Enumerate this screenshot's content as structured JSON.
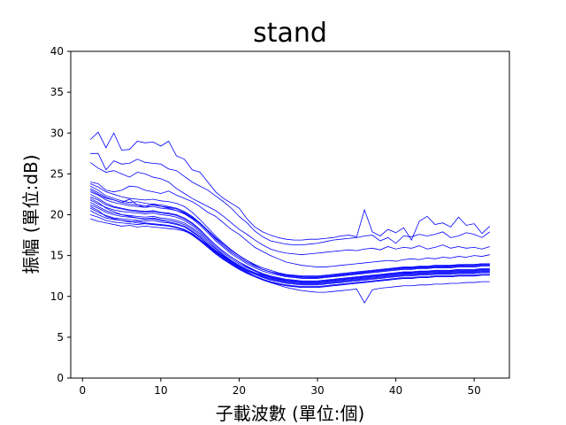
{
  "chart_data": {
    "type": "line",
    "title": "stand",
    "xlabel": "子載波數 (單位:個)",
    "ylabel": "振幅 (單位:dB)",
    "xlim": [
      -1.5,
      54.5
    ],
    "ylim": [
      0,
      40
    ],
    "xticks": [
      0,
      10,
      20,
      30,
      40,
      50
    ],
    "yticks": [
      0,
      5,
      10,
      15,
      20,
      25,
      30,
      35,
      40
    ],
    "grid": false,
    "line_color": "#0000ff",
    "x": [
      1,
      2,
      3,
      4,
      5,
      6,
      7,
      8,
      9,
      10,
      11,
      12,
      13,
      14,
      15,
      16,
      17,
      18,
      19,
      20,
      21,
      22,
      23,
      24,
      25,
      26,
      27,
      28,
      29,
      30,
      31,
      32,
      33,
      34,
      35,
      36,
      37,
      38,
      39,
      40,
      41,
      42,
      43,
      44,
      45,
      46,
      47,
      48,
      49,
      50,
      51,
      52
    ],
    "series": [
      {
        "values": [
          29.2,
          30.1,
          28.2,
          30.0,
          27.9,
          28.0,
          29.0,
          28.8,
          28.9,
          28.4,
          29.0,
          27.2,
          26.8,
          25.5,
          25.2,
          24.0,
          22.8,
          22.0,
          21.4,
          20.8,
          19.5,
          18.5,
          17.9,
          17.5,
          17.2,
          17.0,
          16.9,
          16.9,
          17.0,
          17.0,
          17.1,
          17.2,
          17.4,
          17.5,
          17.3,
          20.6,
          17.9,
          17.4,
          18.2,
          17.8,
          18.4,
          16.9,
          19.2,
          19.8,
          18.8,
          19.0,
          18.5,
          19.7,
          18.7,
          18.9,
          17.7,
          18.6
        ]
      },
      {
        "values": [
          27.5,
          27.5,
          25.5,
          26.6,
          26.2,
          26.3,
          26.8,
          26.4,
          26.3,
          26.2,
          25.6,
          25.4,
          24.7,
          24.0,
          23.5,
          23.0,
          22.3,
          21.6,
          20.8,
          19.8,
          19.0,
          18.0,
          17.3,
          16.8,
          16.6,
          16.4,
          16.3,
          16.3,
          16.4,
          16.5,
          16.7,
          16.9,
          17.0,
          17.1,
          17.2,
          17.4,
          17.5,
          16.8,
          17.2,
          16.5,
          17.4,
          17.3,
          17.6,
          17.4,
          17.6,
          17.9,
          17.2,
          17.4,
          17.8,
          17.6,
          17.2,
          17.9
        ]
      },
      {
        "values": [
          26.4,
          25.7,
          25.2,
          25.4,
          25.0,
          24.6,
          25.2,
          25.0,
          24.6,
          24.4,
          24.0,
          23.2,
          22.6,
          22.0,
          21.5,
          21.0,
          20.5,
          19.8,
          19.0,
          18.2,
          17.6,
          16.9,
          16.3,
          15.8,
          15.5,
          15.3,
          15.2,
          15.1,
          15.2,
          15.3,
          15.4,
          15.5,
          15.6,
          15.7,
          15.6,
          15.8,
          15.9,
          15.7,
          16.1,
          15.8,
          16.0,
          15.9,
          16.2,
          15.8,
          16.0,
          16.3,
          15.9,
          16.1,
          15.9,
          16.0,
          15.8,
          16.1
        ]
      },
      {
        "values": [
          24.0,
          23.8,
          23.0,
          22.8,
          23.0,
          23.5,
          23.4,
          23.0,
          22.8,
          22.6,
          22.9,
          22.4,
          22.0,
          21.6,
          21.0,
          20.3,
          19.8,
          19.0,
          18.2,
          17.6,
          16.8,
          16.0,
          15.5,
          15.0,
          14.6,
          14.2,
          14.0,
          13.8,
          13.7,
          13.6,
          13.6,
          13.7,
          13.8,
          13.9,
          14.0,
          14.1,
          14.2,
          14.3,
          14.4,
          14.3,
          14.5,
          14.6,
          14.5,
          14.7,
          14.6,
          14.8,
          14.7,
          14.9,
          14.8,
          15.0,
          14.9,
          15.1
        ]
      },
      {
        "values": [
          23.0,
          22.5,
          22.0,
          21.8,
          21.5,
          21.9,
          21.2,
          20.9,
          21.3,
          21.0,
          20.8,
          20.5,
          20.2,
          19.6,
          18.9,
          18.0,
          17.0,
          16.2,
          15.4,
          14.8,
          14.2,
          13.7,
          13.3,
          13.0,
          12.8,
          12.6,
          12.5,
          12.4,
          12.3,
          12.3,
          12.4,
          12.5,
          12.6,
          12.7,
          12.8,
          13.0,
          13.1,
          13.2,
          13.3,
          13.4,
          13.5,
          13.5,
          13.6,
          13.6,
          13.7,
          13.7,
          13.8,
          13.8,
          13.9,
          13.9,
          14.0,
          14.0
        ]
      },
      {
        "values": [
          22.0,
          21.5,
          20.8,
          20.4,
          20.0,
          19.8,
          19.6,
          19.4,
          19.5,
          19.3,
          19.1,
          18.9,
          18.6,
          18.0,
          17.3,
          16.4,
          15.6,
          14.9,
          14.3,
          13.8,
          13.3,
          12.9,
          12.6,
          12.3,
          12.1,
          12.0,
          11.9,
          11.8,
          11.8,
          11.8,
          11.9,
          12.0,
          12.1,
          12.2,
          12.3,
          12.4,
          12.5,
          12.6,
          12.7,
          12.8,
          12.9,
          12.9,
          13.0,
          13.0,
          13.1,
          13.1,
          13.1,
          13.2,
          13.2,
          13.2,
          13.3,
          13.3
        ]
      },
      {
        "values": [
          21.0,
          20.5,
          19.8,
          19.5,
          19.3,
          19.2,
          19.0,
          18.9,
          18.8,
          18.7,
          18.6,
          18.4,
          18.1,
          17.5,
          16.8,
          16.0,
          15.2,
          14.5,
          13.9,
          13.4,
          12.9,
          12.5,
          12.1,
          11.8,
          11.5,
          11.3,
          11.2,
          11.1,
          11.1,
          11.1,
          11.2,
          11.3,
          11.4,
          11.5,
          11.6,
          11.7,
          11.8,
          11.9,
          12.0,
          12.1,
          12.2,
          12.2,
          12.3,
          12.3,
          12.4,
          12.4,
          12.4,
          12.5,
          12.5,
          12.5,
          12.6,
          12.6
        ]
      },
      {
        "values": [
          19.5,
          19.2,
          19.0,
          18.8,
          18.6,
          18.7,
          18.5,
          18.6,
          18.5,
          18.4,
          18.3,
          18.2,
          18.0,
          17.6,
          17.0,
          16.3,
          15.5,
          14.8,
          14.1,
          13.5,
          13.0,
          12.5,
          12.1,
          11.7,
          11.4,
          11.1,
          10.9,
          10.7,
          10.6,
          10.5,
          10.5,
          10.6,
          10.7,
          10.8,
          10.9,
          9.2,
          10.8,
          11.0,
          11.1,
          11.2,
          11.3,
          11.3,
          11.4,
          11.4,
          11.5,
          11.5,
          11.6,
          11.6,
          11.7,
          11.7,
          11.8,
          11.8
        ]
      },
      {
        "values": [
          22.5,
          22.0,
          21.4,
          21.0,
          20.8,
          20.6,
          20.5,
          20.4,
          20.5,
          20.3,
          20.2,
          20.0,
          19.6,
          19.0,
          18.2,
          17.2,
          16.3,
          15.5,
          14.8,
          14.2,
          13.6,
          13.1,
          12.7,
          12.4,
          12.1,
          11.9,
          11.8,
          11.7,
          11.7,
          11.7,
          11.8,
          11.9,
          12.0,
          12.1,
          12.2,
          12.3,
          12.4,
          12.5,
          12.6,
          12.7,
          12.8,
          12.8,
          12.9,
          12.9,
          13.0,
          13.0,
          13.0,
          13.1,
          13.1,
          13.1,
          13.2,
          13.2
        ]
      },
      {
        "values": [
          23.5,
          23.0,
          22.3,
          22.0,
          21.7,
          21.5,
          21.6,
          21.4,
          21.3,
          21.2,
          21.0,
          20.8,
          20.4,
          19.8,
          19.0,
          18.1,
          17.2,
          16.4,
          15.6,
          15.0,
          14.4,
          13.9,
          13.5,
          13.2,
          12.9,
          12.7,
          12.6,
          12.5,
          12.5,
          12.5,
          12.6,
          12.7,
          12.8,
          12.9,
          13.0,
          13.1,
          13.2,
          13.3,
          13.4,
          13.5,
          13.6,
          13.6,
          13.7,
          13.7,
          13.8,
          13.8,
          13.8,
          13.9,
          13.9,
          13.9,
          14.0,
          14.0
        ]
      },
      {
        "values": [
          20.5,
          20.0,
          19.6,
          19.4,
          19.3,
          19.1,
          19.2,
          19.0,
          18.9,
          18.8,
          18.7,
          18.5,
          18.2,
          17.7,
          17.0,
          16.2,
          15.4,
          14.7,
          14.0,
          13.4,
          12.9,
          12.5,
          12.1,
          11.8,
          11.6,
          11.4,
          11.3,
          11.2,
          11.2,
          11.2,
          11.3,
          11.4,
          11.5,
          11.6,
          11.7,
          11.8,
          11.9,
          12.0,
          12.1,
          12.2,
          12.3,
          12.3,
          12.4,
          12.4,
          12.5,
          12.5,
          12.5,
          12.6,
          12.6,
          12.6,
          12.7,
          12.7
        ]
      },
      {
        "values": [
          21.5,
          21.0,
          20.5,
          20.2,
          20.0,
          19.9,
          19.8,
          19.7,
          19.8,
          19.6,
          19.5,
          19.3,
          19.0,
          18.4,
          17.7,
          16.8,
          15.9,
          15.1,
          14.4,
          13.8,
          13.3,
          12.9,
          12.5,
          12.2,
          12.0,
          11.8,
          11.7,
          11.6,
          11.6,
          11.6,
          11.7,
          11.8,
          11.9,
          12.0,
          12.1,
          12.2,
          12.3,
          12.4,
          12.5,
          12.6,
          12.7,
          12.7,
          12.8,
          12.8,
          12.9,
          12.9,
          12.9,
          13.0,
          13.0,
          13.0,
          13.1,
          13.1
        ]
      },
      {
        "values": [
          23.8,
          23.4,
          22.8,
          22.5,
          22.2,
          22.0,
          21.9,
          21.8,
          21.9,
          21.7,
          21.6,
          21.4,
          21.0,
          20.3,
          19.4,
          18.4,
          17.4,
          16.5,
          15.7,
          15.0,
          14.4,
          13.8,
          13.3,
          13.0,
          12.7,
          12.5,
          12.4,
          12.3,
          12.3,
          12.3,
          12.4,
          12.5,
          12.6,
          12.7,
          12.8,
          12.9,
          13.0,
          13.1,
          13.2,
          13.3,
          13.4,
          13.4,
          13.5,
          13.5,
          13.6,
          13.6,
          13.6,
          13.7,
          13.7,
          13.7,
          13.8,
          13.8
        ]
      },
      {
        "values": [
          22.2,
          21.8,
          21.2,
          20.9,
          20.7,
          20.5,
          20.4,
          20.3,
          20.4,
          20.2,
          20.1,
          19.9,
          19.5,
          18.9,
          18.1,
          17.2,
          16.3,
          15.5,
          14.8,
          14.2,
          13.7,
          13.2,
          12.8,
          12.5,
          12.3,
          12.1,
          12.0,
          11.9,
          11.9,
          11.9,
          12.0,
          12.1,
          12.2,
          12.3,
          12.4,
          12.5,
          12.6,
          12.7,
          12.8,
          12.9,
          13.0,
          13.0,
          13.1,
          13.1,
          13.2,
          13.2,
          13.2,
          13.3,
          13.3,
          13.3,
          13.4,
          13.4
        ]
      },
      {
        "values": [
          20.0,
          19.7,
          19.3,
          19.1,
          19.0,
          18.9,
          18.8,
          18.9,
          18.8,
          18.7,
          18.6,
          18.4,
          18.1,
          17.6,
          16.9,
          16.1,
          15.3,
          14.6,
          13.9,
          13.3,
          12.8,
          12.4,
          12.0,
          11.7,
          11.5,
          11.3,
          11.2,
          11.1,
          11.1,
          11.1,
          11.2,
          11.3,
          11.4,
          11.5,
          11.6,
          11.7,
          11.8,
          11.9,
          12.0,
          12.1,
          12.2,
          12.2,
          12.3,
          12.3,
          12.4,
          12.4,
          12.4,
          12.5,
          12.5,
          12.5,
          12.6,
          12.6
        ]
      },
      {
        "values": [
          21.8,
          21.3,
          20.9,
          20.6,
          20.4,
          20.3,
          20.2,
          20.1,
          20.2,
          20.0,
          19.9,
          19.7,
          19.3,
          18.7,
          17.9,
          17.0,
          16.1,
          15.3,
          14.6,
          14.0,
          13.5,
          13.1,
          12.7,
          12.4,
          12.2,
          12.0,
          11.9,
          11.8,
          11.8,
          11.8,
          11.9,
          12.0,
          12.1,
          12.2,
          12.3,
          12.4,
          12.5,
          12.6,
          12.7,
          12.8,
          12.9,
          12.9,
          13.0,
          13.0,
          13.1,
          13.1,
          13.1,
          13.2,
          13.2,
          13.2,
          13.3,
          13.3
        ]
      },
      {
        "values": [
          22.8,
          22.4,
          21.8,
          21.5,
          21.3,
          21.1,
          21.0,
          20.9,
          21.0,
          20.8,
          20.7,
          20.5,
          20.1,
          19.5,
          18.7,
          17.8,
          16.8,
          16.0,
          15.2,
          14.6,
          14.0,
          13.5,
          13.1,
          12.8,
          12.6,
          12.4,
          12.3,
          12.2,
          12.2,
          12.2,
          12.3,
          12.4,
          12.5,
          12.6,
          12.7,
          12.8,
          12.9,
          13.0,
          13.1,
          13.2,
          13.3,
          13.3,
          13.4,
          13.4,
          13.5,
          13.5,
          13.5,
          13.6,
          13.6,
          13.6,
          13.7,
          13.7
        ]
      },
      {
        "values": [
          20.8,
          20.3,
          19.9,
          19.6,
          19.5,
          19.4,
          19.3,
          19.2,
          19.3,
          19.1,
          19.0,
          18.8,
          18.5,
          17.9,
          17.2,
          16.4,
          15.6,
          14.9,
          14.2,
          13.6,
          13.1,
          12.7,
          12.3,
          12.0,
          11.8,
          11.6,
          11.5,
          11.4,
          11.4,
          11.4,
          11.5,
          11.6,
          11.7,
          11.8,
          11.9,
          12.0,
          12.1,
          12.2,
          12.3,
          12.4,
          12.5,
          12.5,
          12.6,
          12.6,
          12.7,
          12.7,
          12.7,
          12.8,
          12.8,
          12.8,
          12.9,
          12.9
        ]
      },
      {
        "values": [
          21.2,
          20.8,
          20.3,
          20.0,
          19.8,
          19.7,
          19.6,
          19.5,
          19.6,
          19.4,
          19.3,
          19.1,
          18.8,
          18.2,
          17.5,
          16.6,
          15.8,
          15.0,
          14.3,
          13.7,
          13.2,
          12.8,
          12.4,
          12.1,
          11.9,
          11.7,
          11.6,
          11.5,
          11.5,
          11.5,
          11.6,
          11.7,
          11.8,
          11.9,
          12.0,
          12.1,
          12.2,
          12.3,
          12.4,
          12.5,
          12.6,
          12.6,
          12.7,
          12.7,
          12.8,
          12.8,
          12.8,
          12.9,
          12.9,
          12.9,
          13.0,
          13.0
        ]
      },
      {
        "values": [
          23.2,
          22.7,
          22.1,
          21.8,
          21.5,
          21.3,
          21.2,
          21.1,
          21.2,
          21.0,
          20.9,
          20.7,
          20.3,
          19.7,
          18.9,
          18.0,
          17.1,
          16.2,
          15.4,
          14.8,
          14.2,
          13.7,
          13.3,
          13.0,
          12.8,
          12.6,
          12.5,
          12.4,
          12.4,
          12.4,
          12.5,
          12.6,
          12.7,
          12.8,
          12.9,
          13.0,
          13.1,
          13.2,
          13.3,
          13.4,
          13.5,
          13.5,
          13.6,
          13.6,
          13.7,
          13.7,
          13.7,
          13.8,
          13.8,
          13.8,
          13.9,
          13.9
        ]
      }
    ]
  }
}
